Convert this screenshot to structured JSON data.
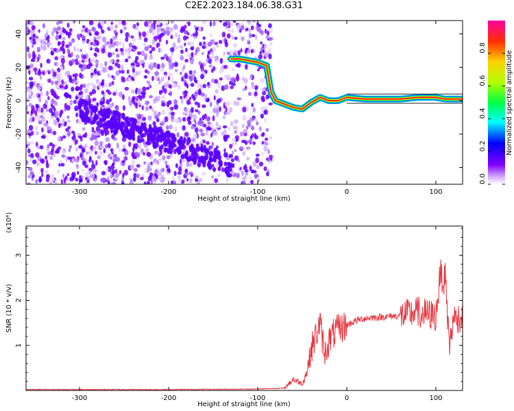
{
  "title": "C2E2.2023.184.06.38.G31",
  "colors": {
    "spectrogram_noise": "#7f00ff",
    "snr_line": "#e8303a",
    "axis": "#000000"
  },
  "chart_data": [
    {
      "type": "heatmap",
      "xlabel": "Height of straight line (km)",
      "ylabel": "Frequency (Hz)",
      "xlim": [
        -360,
        130
      ],
      "ylim": [
        -50,
        48
      ],
      "xticks": [
        -300,
        -200,
        -100,
        0,
        100
      ],
      "yticks": [
        -40,
        -20,
        0,
        20,
        40
      ],
      "xtick_labels": [
        "-300",
        "-200",
        "-100",
        "0",
        "100"
      ],
      "ytick_labels": [
        "-40",
        "-20",
        "0",
        "20",
        "40"
      ],
      "colorbar": {
        "label": "Normalized spectral amplitude",
        "range": [
          0.0,
          1.0
        ],
        "ticks": [
          0.0,
          0.2,
          0.4,
          0.6,
          0.8
        ],
        "tick_labels": [
          "0.0",
          "0.2",
          "0.4",
          "0.6",
          "0.8"
        ],
        "colormap": "rainbow"
      },
      "signal_track": {
        "x": [
          -130,
          -120,
          -110,
          -100,
          -90,
          -85,
          -80,
          -70,
          -60,
          -50,
          -40,
          -30,
          -20,
          -10,
          0,
          20,
          40,
          60,
          80,
          100,
          110,
          120,
          130
        ],
        "y": [
          25,
          25,
          24,
          23,
          21,
          5,
          0,
          -2,
          -4,
          -5,
          -1,
          2,
          0,
          0,
          2,
          1,
          1,
          1,
          2,
          2,
          1,
          1,
          1
        ]
      },
      "noise_region_x": [
        -360,
        -85
      ]
    },
    {
      "type": "line",
      "xlabel": "Height of straight line (km)",
      "ylabel": "SNR (10 * v/v)",
      "y_multiplier": "(x10⁴)",
      "xlim": [
        -360,
        130
      ],
      "ylim": [
        0,
        3.65
      ],
      "xticks": [
        -300,
        -200,
        -100,
        0,
        100
      ],
      "yticks": [
        1,
        2,
        3
      ],
      "xtick_labels": [
        "-300",
        "-200",
        "-100",
        "0",
        "100"
      ],
      "ytick_labels": [
        "1",
        "2",
        "3"
      ],
      "series": [
        {
          "x": [
            -360,
            -200,
            -100,
            -70,
            -60,
            -50,
            -45,
            -40,
            -35,
            -30,
            -25,
            -20,
            -15,
            -10,
            0,
            10,
            20,
            30,
            40,
            50,
            60,
            70,
            80,
            90,
            100,
            105,
            110,
            115,
            120,
            130
          ],
          "values": [
            0.02,
            0.02,
            0.03,
            0.05,
            0.25,
            0.15,
            0.4,
            0.9,
            1.2,
            1.5,
            0.8,
            1.1,
            1.25,
            1.35,
            1.45,
            1.55,
            1.6,
            1.62,
            1.63,
            1.65,
            1.66,
            1.7,
            1.75,
            1.7,
            1.65,
            2.6,
            2.4,
            1.0,
            1.6,
            1.62
          ]
        }
      ]
    }
  ]
}
